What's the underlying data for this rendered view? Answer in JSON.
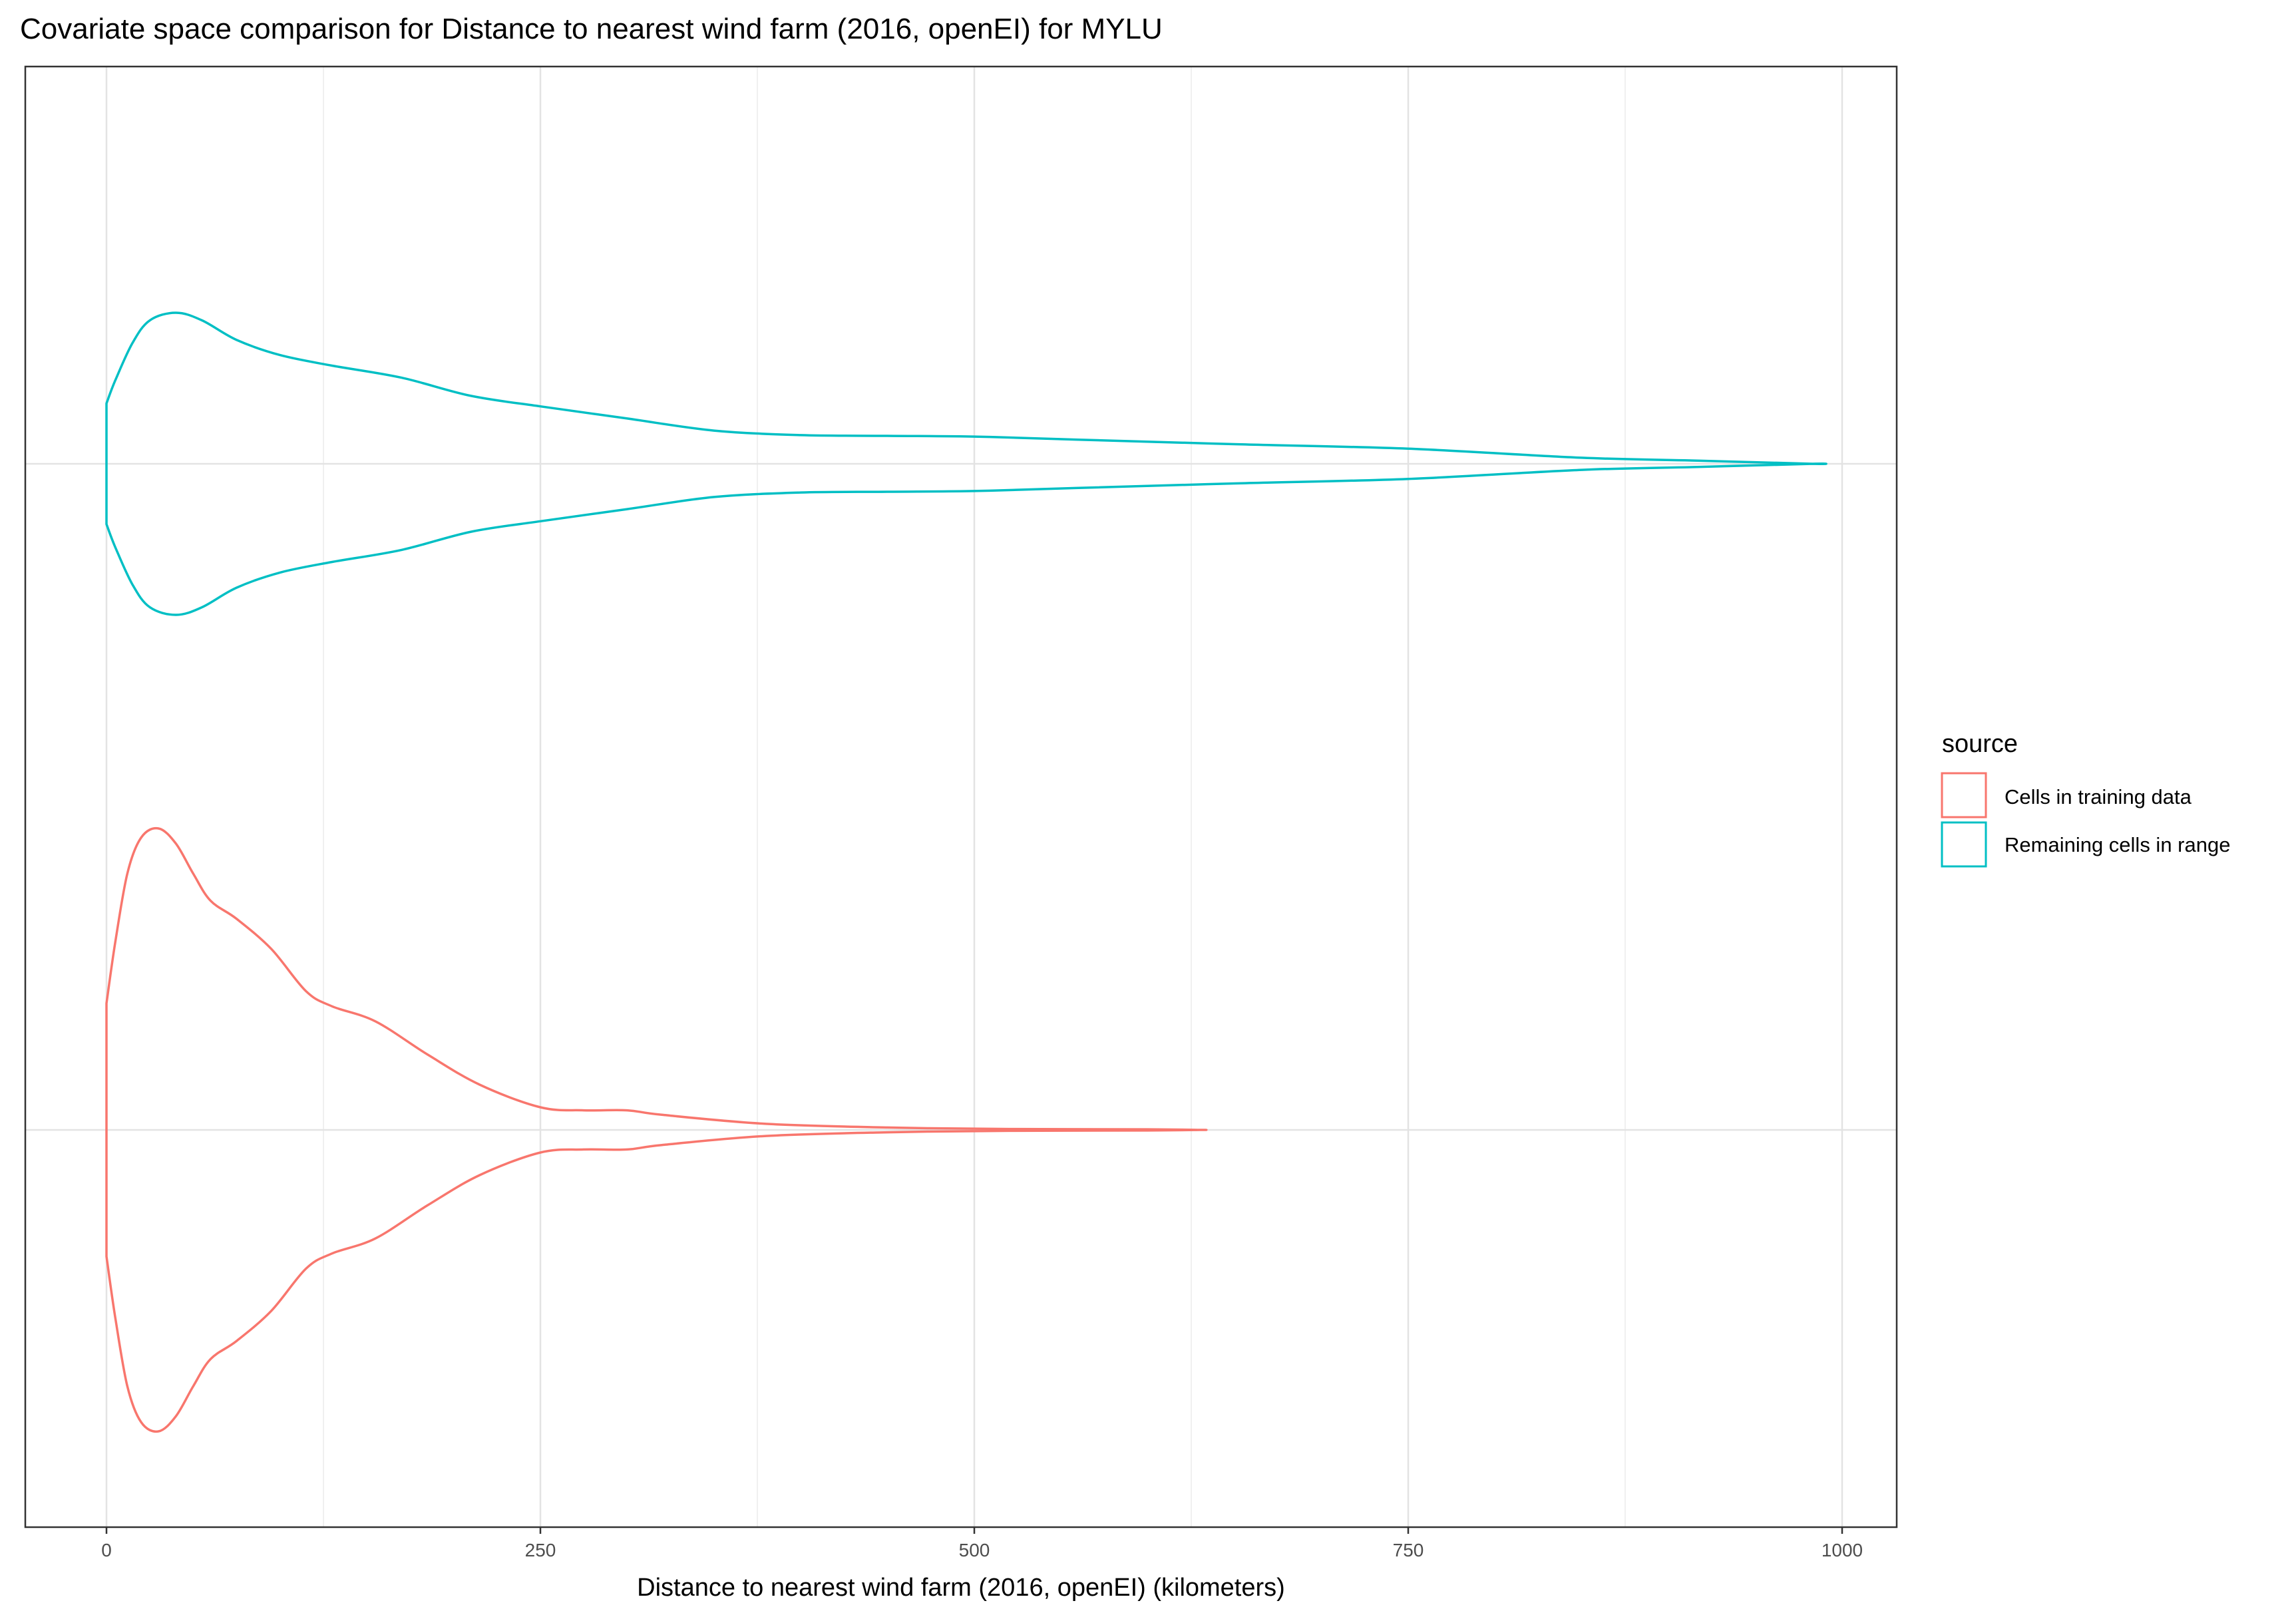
{
  "chart_data": {
    "type": "violin",
    "title": "Covariate space comparison for Distance to nearest wind farm (2016, openEI) for MYLU",
    "xlabel": "Distance to nearest wind farm (2016, openEI) (kilometers)",
    "ylabel": "",
    "xlim": [
      -12,
      1027
    ],
    "x_ticks": [
      0,
      250,
      500,
      750,
      1000
    ],
    "grid": true,
    "legend": {
      "title": "source",
      "position": "right",
      "entries": [
        {
          "label": "Cells in training data",
          "color": "#F8766D"
        },
        {
          "label": "Remaining cells in range",
          "color": "#00BFC4"
        }
      ]
    },
    "series": [
      {
        "name": "Remaining cells in range",
        "color": "#00BFC4",
        "density_profile": {
          "x": [
            0,
            5,
            15,
            25,
            40,
            55,
            75,
            100,
            130,
            170,
            210,
            250,
            300,
            350,
            400,
            450,
            500,
            560,
            650,
            750,
            850,
            920,
            983
          ],
          "relative_width": [
            0.4,
            0.55,
            0.8,
            0.95,
            1.0,
            0.95,
            0.82,
            0.72,
            0.65,
            0.57,
            0.45,
            0.38,
            0.3,
            0.22,
            0.19,
            0.185,
            0.18,
            0.16,
            0.13,
            0.1,
            0.04,
            0.02,
            0.0
          ]
        }
      },
      {
        "name": "Cells in training data",
        "color": "#F8766D",
        "density_profile": {
          "x": [
            0,
            5,
            12,
            20,
            30,
            40,
            50,
            60,
            75,
            95,
            115,
            130,
            155,
            185,
            215,
            250,
            275,
            300,
            320,
            380,
            450,
            520,
            600,
            630
          ],
          "relative_width": [
            0.42,
            0.62,
            0.85,
            0.97,
            1.0,
            0.95,
            0.85,
            0.76,
            0.7,
            0.6,
            0.46,
            0.41,
            0.36,
            0.25,
            0.15,
            0.075,
            0.065,
            0.065,
            0.05,
            0.02,
            0.008,
            0.003,
            0.002,
            0.0
          ]
        }
      }
    ]
  }
}
